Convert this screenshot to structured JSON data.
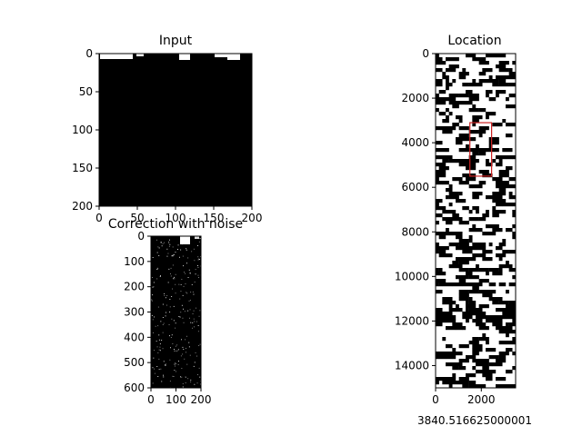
{
  "chart_data": [
    {
      "type": "heatmap",
      "title": "Input",
      "xlabel": "",
      "ylabel": "",
      "xlim": [
        0,
        200
      ],
      "ylim": [
        200,
        0
      ],
      "xticks": [
        "0",
        "50",
        "100",
        "150",
        "200"
      ],
      "yticks": [
        "0",
        "50",
        "100",
        "150",
        "200"
      ],
      "colormap": [
        "#000000",
        "#ffffff"
      ]
    },
    {
      "type": "heatmap",
      "title": "Correction with noise",
      "xlabel": "",
      "ylabel": "",
      "xlim": [
        0,
        200
      ],
      "ylim": [
        600,
        0
      ],
      "xticks": [
        "0",
        "100",
        "200"
      ],
      "yticks": [
        "0",
        "100",
        "200",
        "300",
        "400",
        "500",
        "600"
      ],
      "colormap": [
        "#000000",
        "#ffffff"
      ]
    },
    {
      "type": "heatmap",
      "title": "Location",
      "xlabel": "3840.516625000001",
      "ylabel": "",
      "xlim": [
        0,
        3500
      ],
      "ylim": [
        15000,
        0
      ],
      "xticks": [
        "0",
        "2000"
      ],
      "yticks": [
        "0",
        "2000",
        "4000",
        "6000",
        "8000",
        "10000",
        "12000",
        "14000"
      ],
      "colormap": [
        "#000000",
        "#ffffff"
      ],
      "highlight_box": {
        "x": [
          1500,
          2450
        ],
        "y": [
          3100,
          5500
        ],
        "color": "#cc2222"
      }
    }
  ]
}
